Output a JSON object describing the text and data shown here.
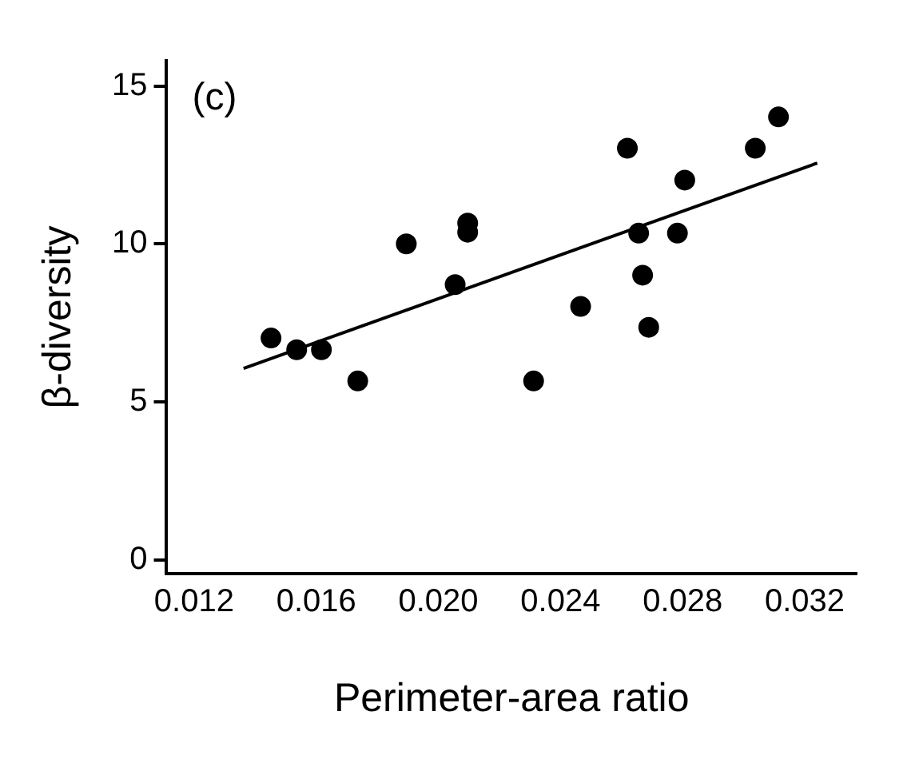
{
  "chart_data": {
    "type": "scatter",
    "xlabel": "Perimeter-area ratio",
    "ylabel": "β-diversity",
    "annotations": [
      "(c)"
    ],
    "xlim": [
      0.0111,
      0.0337
    ],
    "ylim": [
      -0.44,
      15.8
    ],
    "xticks": [
      {
        "value": 0.012,
        "label": "0.012"
      },
      {
        "value": 0.016,
        "label": "0.016"
      },
      {
        "value": 0.02,
        "label": "0.020"
      },
      {
        "value": 0.024,
        "label": "0.024"
      },
      {
        "value": 0.028,
        "label": "0.028"
      },
      {
        "value": 0.032,
        "label": "0.032"
      }
    ],
    "yticks": [
      0,
      5,
      10,
      15
    ],
    "grid": false,
    "legend": false,
    "marker": "circle",
    "series": [
      {
        "color": "#000000",
        "x": [
          0.01452,
          0.01536,
          0.01617,
          0.01736,
          0.01895,
          0.02055,
          0.02096,
          0.02096,
          0.02312,
          0.02466,
          0.02619,
          0.02656,
          0.02669,
          0.02689,
          0.02783,
          0.02807,
          0.03038,
          0.03114
        ],
        "values": [
          7.02,
          6.65,
          6.65,
          5.66,
          10.0,
          8.71,
          10.66,
          10.37,
          5.66,
          8.02,
          13.03,
          10.34,
          9.01,
          7.36,
          10.34,
          12.02,
          13.03,
          14.02
        ]
      },
      {
        "type": "line",
        "color": "#000000",
        "marker": "none",
        "line_style": "solid",
        "x": [
          0.01362,
          0.03241
        ],
        "values": [
          6.06,
          12.56
        ]
      }
    ]
  }
}
